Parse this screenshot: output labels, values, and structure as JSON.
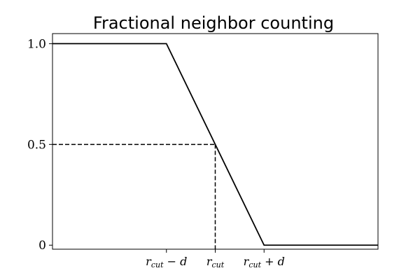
{
  "chart_data": {
    "type": "line",
    "title": "Fractional neighbor counting",
    "xlabel": "",
    "ylabel": "",
    "xlim": [
      0,
      4
    ],
    "ylim": [
      -0.02,
      1.05
    ],
    "grid": false,
    "legend": "none",
    "x_ticks": [
      {
        "value": 1.4,
        "label": {
          "base": "r",
          "sub": "cut",
          "suffix": " − d"
        }
      },
      {
        "value": 2.0,
        "label": {
          "base": "r",
          "sub": "cut",
          "suffix": ""
        }
      },
      {
        "value": 2.6,
        "label": {
          "base": "r",
          "sub": "cut",
          "suffix": " + d"
        }
      }
    ],
    "y_ticks": [
      {
        "value": 0,
        "label": "0"
      },
      {
        "value": 0.5,
        "label": "0.5"
      },
      {
        "value": 1.0,
        "label": "1.0"
      }
    ],
    "series": [
      {
        "style": "solid",
        "color": "#000000",
        "x": [
          0,
          1.4,
          2.6,
          4
        ],
        "y": [
          1.0,
          1.0,
          0.0,
          0.0
        ]
      }
    ],
    "reference_lines": [
      {
        "style": "dashed",
        "color": "#000000",
        "x": [
          0,
          2.0
        ],
        "y": [
          0.5,
          0.5
        ]
      },
      {
        "style": "dashed",
        "color": "#000000",
        "x": [
          2.0,
          2.0
        ],
        "y": [
          0.5,
          -0.02
        ]
      }
    ]
  }
}
